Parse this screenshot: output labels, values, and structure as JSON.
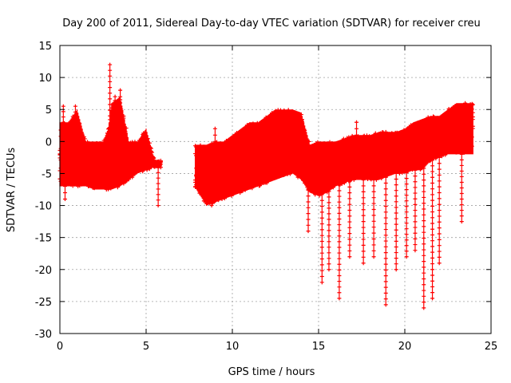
{
  "chart_data": {
    "type": "scatter",
    "title": "Day 200 of 2011, Sidereal Day-to-day VTEC variation (SDTVAR) for receiver creu",
    "xlabel": "GPS time / hours",
    "ylabel": "SDTVAR / TECUs",
    "xlim": [
      0,
      25
    ],
    "ylim": [
      -30,
      15
    ],
    "xticks": [
      0,
      5,
      10,
      15,
      20,
      25
    ],
    "yticks": [
      -30,
      -25,
      -20,
      -15,
      -10,
      -5,
      0,
      5,
      10,
      15
    ],
    "grid": true,
    "marker": "+",
    "color": "#ff0000",
    "series": [
      {
        "name": "SDTVAR",
        "band_envelope": {
          "x": [
            0.0,
            0.5,
            1.0,
            1.5,
            2.0,
            2.5,
            2.8,
            3.0,
            3.5,
            4.0,
            4.5,
            5.0,
            5.5,
            5.8,
            7.8,
            8.5,
            9.0,
            9.5,
            10.0,
            10.5,
            11.0,
            11.5,
            12.0,
            12.5,
            13.0,
            13.5,
            14.0,
            14.5,
            15.0,
            15.5,
            16.0,
            16.5,
            17.0,
            17.5,
            18.0,
            18.5,
            19.0,
            19.5,
            20.0,
            20.5,
            21.0,
            21.5,
            22.0,
            22.5,
            23.0,
            23.5,
            24.0
          ],
          "upper": [
            3,
            3,
            5,
            0,
            0,
            0,
            2,
            6,
            7,
            0,
            0,
            2,
            -3,
            -3,
            -0.5,
            -0.5,
            0,
            0,
            1,
            2,
            3,
            3,
            4,
            5,
            5,
            5,
            4.5,
            -0.5,
            0,
            0,
            0,
            0.5,
            1,
            1,
            1,
            1.5,
            1.5,
            1.5,
            2,
            3,
            3.5,
            4,
            4,
            5,
            6,
            6,
            6
          ],
          "lower": [
            -7,
            -7,
            -7,
            -7,
            -7.5,
            -7.5,
            -7.5,
            -7.5,
            -7,
            -6,
            -5,
            -4.5,
            -4,
            -4,
            -7,
            -10,
            -9.5,
            -9,
            -8.5,
            -8,
            -7.5,
            -7,
            -6.5,
            -6,
            -5.5,
            -5,
            -6,
            -8,
            -8.5,
            -8,
            -7,
            -6.5,
            -6,
            -6,
            -6,
            -6,
            -5.5,
            -5,
            -5,
            -4.5,
            -4.5,
            -3,
            -2.5,
            -2,
            -2,
            -2,
            -2
          ]
        },
        "spikes": [
          {
            "x": 0.2,
            "y": 5.5
          },
          {
            "x": 0.3,
            "y": -9.0
          },
          {
            "x": 0.9,
            "y": 5.5
          },
          {
            "x": 2.9,
            "y": 12.0
          },
          {
            "x": 3.2,
            "y": 7.0
          },
          {
            "x": 3.5,
            "y": 8.0
          },
          {
            "x": 5.7,
            "y": -10.0
          },
          {
            "x": 8.8,
            "y": -10.0
          },
          {
            "x": 9.0,
            "y": 2.0
          },
          {
            "x": 14.4,
            "y": -14.0
          },
          {
            "x": 15.2,
            "y": -22.0
          },
          {
            "x": 15.6,
            "y": -20.0
          },
          {
            "x": 16.2,
            "y": -24.5
          },
          {
            "x": 16.8,
            "y": -18.0
          },
          {
            "x": 17.2,
            "y": 3.0
          },
          {
            "x": 17.6,
            "y": -19.0
          },
          {
            "x": 18.2,
            "y": -18.0
          },
          {
            "x": 18.9,
            "y": -25.5
          },
          {
            "x": 19.5,
            "y": -20.0
          },
          {
            "x": 20.1,
            "y": -18.0
          },
          {
            "x": 20.6,
            "y": -17.0
          },
          {
            "x": 21.1,
            "y": -26.0
          },
          {
            "x": 21.6,
            "y": -24.5
          },
          {
            "x": 22.0,
            "y": -19.0
          },
          {
            "x": 23.3,
            "y": -12.5
          },
          {
            "x": 23.5,
            "y": 6.0
          }
        ]
      }
    ]
  }
}
